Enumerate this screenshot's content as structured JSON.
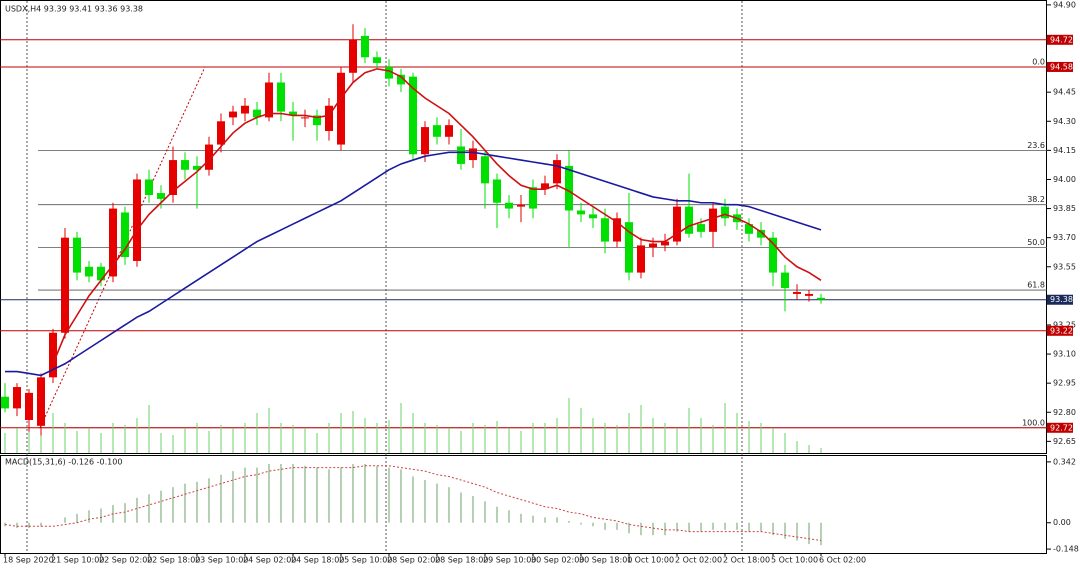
{
  "chart_data": {
    "type": "candlestick",
    "title": "USDX,H4  93.39 93.41 93.36 93.38",
    "x": [
      "18 Sep 2020",
      null,
      null,
      null,
      "21 Sep 10:00",
      null,
      null,
      null,
      "22 Sep 02:00",
      null,
      null,
      null,
      "22 Sep 18:00",
      null,
      null,
      null,
      "23 Sep 10:00",
      null,
      null,
      null,
      "24 Sep 02:00",
      null,
      null,
      null,
      "24 Sep 18:00",
      null,
      null,
      null,
      "25 Sep 10:00",
      null,
      null,
      null,
      "28 Sep 02:00",
      null,
      null,
      null,
      "28 Sep 18:00",
      null,
      null,
      null,
      "29 Sep 10:00",
      null,
      null,
      null,
      "30 Sep 02:00",
      null,
      null,
      null,
      "30 Sep 18:00",
      null,
      null,
      null,
      "1 Oct 10:00",
      null,
      null,
      null,
      "2 Oct 02:00",
      null,
      null,
      null,
      "2 Oct 18:00",
      null,
      null,
      null,
      "5 Oct 10:00",
      null,
      null,
      null,
      "6 Oct 02:00"
    ],
    "open": [
      92.88,
      92.82,
      92.76,
      92.73,
      92.98,
      93.21,
      93.7,
      93.55,
      93.55,
      93.5,
      93.83,
      93.58,
      94.0,
      93.93,
      93.92,
      94.1,
      94.07,
      94.05,
      94.18,
      94.32,
      94.34,
      94.36,
      94.32,
      94.5,
      94.35,
      94.32,
      94.33,
      94.25,
      94.18,
      94.55,
      94.74,
      94.63,
      94.58,
      94.54,
      94.53,
      94.13,
      94.28,
      94.22,
      94.17,
      94.1,
      94.12,
      94.0,
      93.88,
      93.86,
      93.96,
      93.95,
      93.98,
      94.07,
      93.84,
      93.82,
      93.8,
      93.68,
      93.78,
      93.52,
      93.65,
      93.66,
      93.68,
      93.86,
      93.77,
      93.73,
      93.86,
      93.82,
      93.77,
      93.74,
      93.7,
      93.52,
      93.41,
      93.4,
      93.39
    ],
    "high": [
      92.95,
      92.95,
      92.92,
      93.0,
      93.23,
      93.75,
      93.73,
      93.58,
      93.57,
      93.88,
      93.86,
      94.03,
      94.05,
      93.97,
      94.17,
      94.14,
      94.12,
      94.22,
      94.34,
      94.38,
      94.42,
      94.4,
      94.55,
      94.55,
      94.4,
      94.36,
      94.36,
      94.42,
      94.58,
      94.8,
      94.78,
      94.66,
      94.62,
      94.57,
      94.55,
      94.3,
      94.32,
      94.31,
      94.26,
      94.2,
      94.15,
      94.03,
      93.92,
      93.92,
      94.0,
      94.02,
      94.13,
      94.15,
      93.88,
      93.86,
      93.85,
      93.83,
      93.93,
      93.7,
      93.7,
      93.72,
      93.9,
      94.03,
      93.8,
      93.88,
      93.9,
      93.85,
      93.8,
      93.78,
      93.73,
      93.56,
      93.46,
      93.43,
      93.41
    ],
    "low": [
      92.8,
      92.78,
      92.7,
      92.68,
      92.95,
      93.18,
      93.48,
      93.47,
      93.45,
      93.47,
      93.56,
      93.55,
      93.88,
      93.85,
      93.88,
      94.0,
      93.85,
      94.02,
      94.14,
      94.28,
      94.3,
      94.28,
      94.3,
      94.3,
      94.2,
      94.27,
      94.2,
      94.2,
      94.15,
      94.5,
      94.6,
      94.57,
      94.48,
      94.45,
      94.1,
      94.09,
      94.18,
      94.18,
      94.05,
      94.06,
      93.85,
      93.75,
      93.8,
      93.78,
      93.8,
      93.92,
      93.95,
      93.65,
      93.78,
      93.75,
      93.62,
      93.65,
      93.48,
      93.49,
      93.6,
      93.63,
      93.66,
      93.7,
      93.7,
      93.65,
      93.76,
      93.74,
      93.68,
      93.66,
      93.45,
      93.32,
      93.38,
      93.37,
      93.36
    ],
    "close": [
      92.82,
      92.93,
      92.9,
      92.98,
      93.21,
      93.7,
      93.52,
      93.5,
      93.48,
      93.85,
      93.6,
      94.0,
      93.92,
      93.9,
      94.1,
      94.05,
      94.05,
      94.18,
      94.3,
      94.35,
      94.38,
      94.32,
      94.5,
      94.35,
      94.33,
      94.32,
      94.28,
      94.38,
      94.55,
      94.72,
      94.63,
      94.6,
      94.52,
      94.49,
      94.13,
      94.27,
      94.22,
      94.28,
      94.08,
      94.16,
      93.98,
      93.88,
      93.85,
      93.87,
      93.85,
      93.98,
      94.1,
      93.84,
      93.82,
      93.8,
      93.68,
      93.8,
      93.52,
      93.66,
      93.67,
      93.68,
      93.86,
      93.72,
      93.73,
      93.85,
      93.8,
      93.78,
      93.72,
      93.7,
      93.52,
      93.44,
      93.42,
      93.41,
      93.38
    ],
    "up_color": "#e60000",
    "down_color": "#00e000",
    "volume": [
      20,
      25,
      45,
      50,
      40,
      30,
      22,
      25,
      20,
      30,
      28,
      35,
      48,
      20,
      18,
      25,
      30,
      22,
      28,
      25,
      30,
      40,
      45,
      30,
      28,
      25,
      20,
      30,
      40,
      42,
      35,
      30,
      33,
      50,
      40,
      30,
      28,
      25,
      22,
      30,
      28,
      32,
      25,
      22,
      30,
      30,
      35,
      55,
      45,
      35,
      30,
      28,
      40,
      48,
      35,
      30,
      25,
      45,
      35,
      28,
      50,
      40,
      32,
      30,
      25,
      20,
      12,
      8,
      5
    ],
    "volume_color": "#6ad36a",
    "ma": [
      {
        "color": "#d01010",
        "values": [
          null,
          null,
          null,
          null,
          93.05,
          93.2,
          93.3,
          93.4,
          93.48,
          93.56,
          93.64,
          93.74,
          93.82,
          93.88,
          93.94,
          93.99,
          94.04,
          94.1,
          94.17,
          94.24,
          94.29,
          94.32,
          94.34,
          94.34,
          94.33,
          94.33,
          94.32,
          94.33,
          94.42,
          94.5,
          94.55,
          94.57,
          94.56,
          94.53,
          94.47,
          94.42,
          94.38,
          94.34,
          94.28,
          94.22,
          94.15,
          94.08,
          94.02,
          93.97,
          93.95,
          93.95,
          93.97,
          93.94,
          93.9,
          93.86,
          93.82,
          93.78,
          93.73,
          93.69,
          93.68,
          93.68,
          93.72,
          93.76,
          93.78,
          93.8,
          93.82,
          93.8,
          93.77,
          93.73,
          93.67,
          93.6,
          93.55,
          93.52,
          93.48
        ]
      },
      {
        "color": "#1a1aa0",
        "values": [
          93.01,
          93.01,
          93.0,
          92.99,
          93.02,
          93.05,
          93.09,
          93.13,
          93.17,
          93.21,
          93.25,
          93.29,
          93.32,
          93.36,
          93.4,
          93.44,
          93.48,
          93.52,
          93.56,
          93.6,
          93.64,
          93.68,
          93.71,
          93.74,
          93.77,
          93.8,
          93.83,
          93.86,
          93.89,
          93.93,
          93.97,
          94.01,
          94.05,
          94.08,
          94.1,
          94.12,
          94.13,
          94.14,
          94.14,
          94.14,
          94.13,
          94.12,
          94.11,
          94.1,
          94.09,
          94.08,
          94.07,
          94.05,
          94.03,
          94.01,
          93.99,
          93.97,
          93.95,
          93.93,
          93.91,
          93.9,
          93.89,
          93.89,
          93.88,
          93.88,
          93.87,
          93.87,
          93.86,
          93.84,
          93.82,
          93.8,
          93.78,
          93.76,
          93.74
        ]
      }
    ],
    "ylim": [
      92.59,
      94.92
    ],
    "yticks": [
      {
        "value": 94.9,
        "label": "94.90"
      },
      94.45,
      {
        "value": 94.3,
        "label": "94.30"
      },
      94.15,
      {
        "value": 94.0,
        "label": "94.00"
      },
      93.85,
      {
        "value": 93.7,
        "label": "93.70"
      },
      93.55,
      93.25,
      {
        "value": 93.1,
        "label": "93.10"
      },
      92.95,
      {
        "value": 92.8,
        "label": "92.80"
      },
      92.65
    ],
    "hlines": [
      {
        "value": 94.72,
        "color": "#c00000"
      },
      {
        "value": 94.58,
        "color": "#c00000"
      },
      {
        "value": 93.38,
        "color": "#1a2a5a"
      },
      {
        "value": 93.22,
        "color": "#c00000"
      },
      {
        "value": 92.72,
        "color": "#c00000"
      }
    ],
    "fib": [
      {
        "level": "0.0",
        "price": 94.58
      },
      {
        "level": "23.6",
        "price": 94.15
      },
      {
        "level": "38.2",
        "price": 93.87
      },
      {
        "level": "50.0",
        "price": 93.65
      },
      {
        "level": "61.8",
        "price": 93.43
      },
      {
        "level": "100.0",
        "price": 92.72
      }
    ],
    "macd": {
      "title": "MACD(15,31,6) -0.126 -0.100",
      "ylim": [
        -0.17,
        0.375
      ],
      "yticks": [
        0.342,
        {
          "value": 0,
          "label": "0.00"
        },
        -0.148
      ],
      "histogram": [
        -0.02,
        -0.03,
        -0.03,
        -0.02,
        0.0,
        0.03,
        0.05,
        0.07,
        0.08,
        0.1,
        0.11,
        0.14,
        0.16,
        0.18,
        0.2,
        0.22,
        0.23,
        0.25,
        0.27,
        0.29,
        0.31,
        0.31,
        0.33,
        0.33,
        0.33,
        0.32,
        0.31,
        0.3,
        0.31,
        0.33,
        0.33,
        0.32,
        0.31,
        0.3,
        0.26,
        0.24,
        0.22,
        0.2,
        0.17,
        0.15,
        0.12,
        0.09,
        0.07,
        0.05,
        0.04,
        0.03,
        0.03,
        0.01,
        -0.01,
        -0.02,
        -0.04,
        -0.04,
        -0.06,
        -0.07,
        -0.07,
        -0.07,
        -0.05,
        -0.05,
        -0.05,
        -0.04,
        -0.04,
        -0.04,
        -0.05,
        -0.05,
        -0.07,
        -0.09,
        -0.1,
        -0.12,
        -0.126
      ],
      "signal": [
        -0.01,
        -0.02,
        -0.02,
        -0.02,
        -0.02,
        -0.01,
        0.0,
        0.02,
        0.03,
        0.05,
        0.06,
        0.08,
        0.1,
        0.12,
        0.14,
        0.16,
        0.18,
        0.2,
        0.22,
        0.24,
        0.26,
        0.27,
        0.29,
        0.3,
        0.31,
        0.31,
        0.31,
        0.31,
        0.31,
        0.31,
        0.32,
        0.32,
        0.32,
        0.31,
        0.3,
        0.29,
        0.27,
        0.26,
        0.24,
        0.22,
        0.2,
        0.17,
        0.15,
        0.13,
        0.11,
        0.09,
        0.08,
        0.06,
        0.05,
        0.03,
        0.02,
        0.01,
        -0.01,
        -0.02,
        -0.03,
        -0.04,
        -0.04,
        -0.05,
        -0.05,
        -0.05,
        -0.05,
        -0.05,
        -0.05,
        -0.05,
        -0.06,
        -0.07,
        -0.08,
        -0.09,
        -0.1
      ],
      "histogram_color": "#9cc09c",
      "signal_color": "#d04040"
    }
  }
}
